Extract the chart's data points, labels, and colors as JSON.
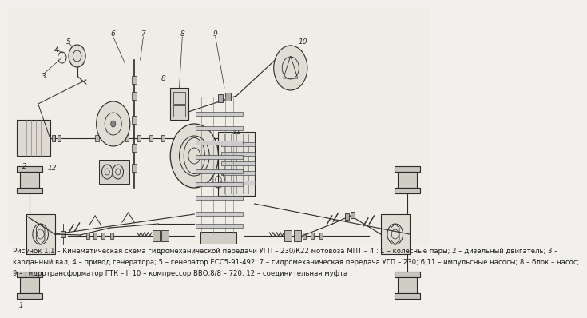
{
  "bg_color": "#f2f0ec",
  "line_color": "#2a2a2a",
  "caption_line1": "Рисунок 1.1 – Кинематическая схема гидромеханической передачи УГП – 230/К22 мотовоза МПТ – 4 : 1 – колесные пары; 2 – дизельный двигатель; 3 –",
  "caption_line2": "карданный вал; 4 – привод генератора; 5 – генератор ЕСС5-91-492; 7 – гидромеханическая передача УГП – 230; 6,11 – импульсные насосы; 8 – блок – насос;",
  "caption_line3": "9 – гидротрансформатор ГТК –II; 10 – компрессор ВВО,8/8 – 720; 12 – соединительная муфта ."
}
